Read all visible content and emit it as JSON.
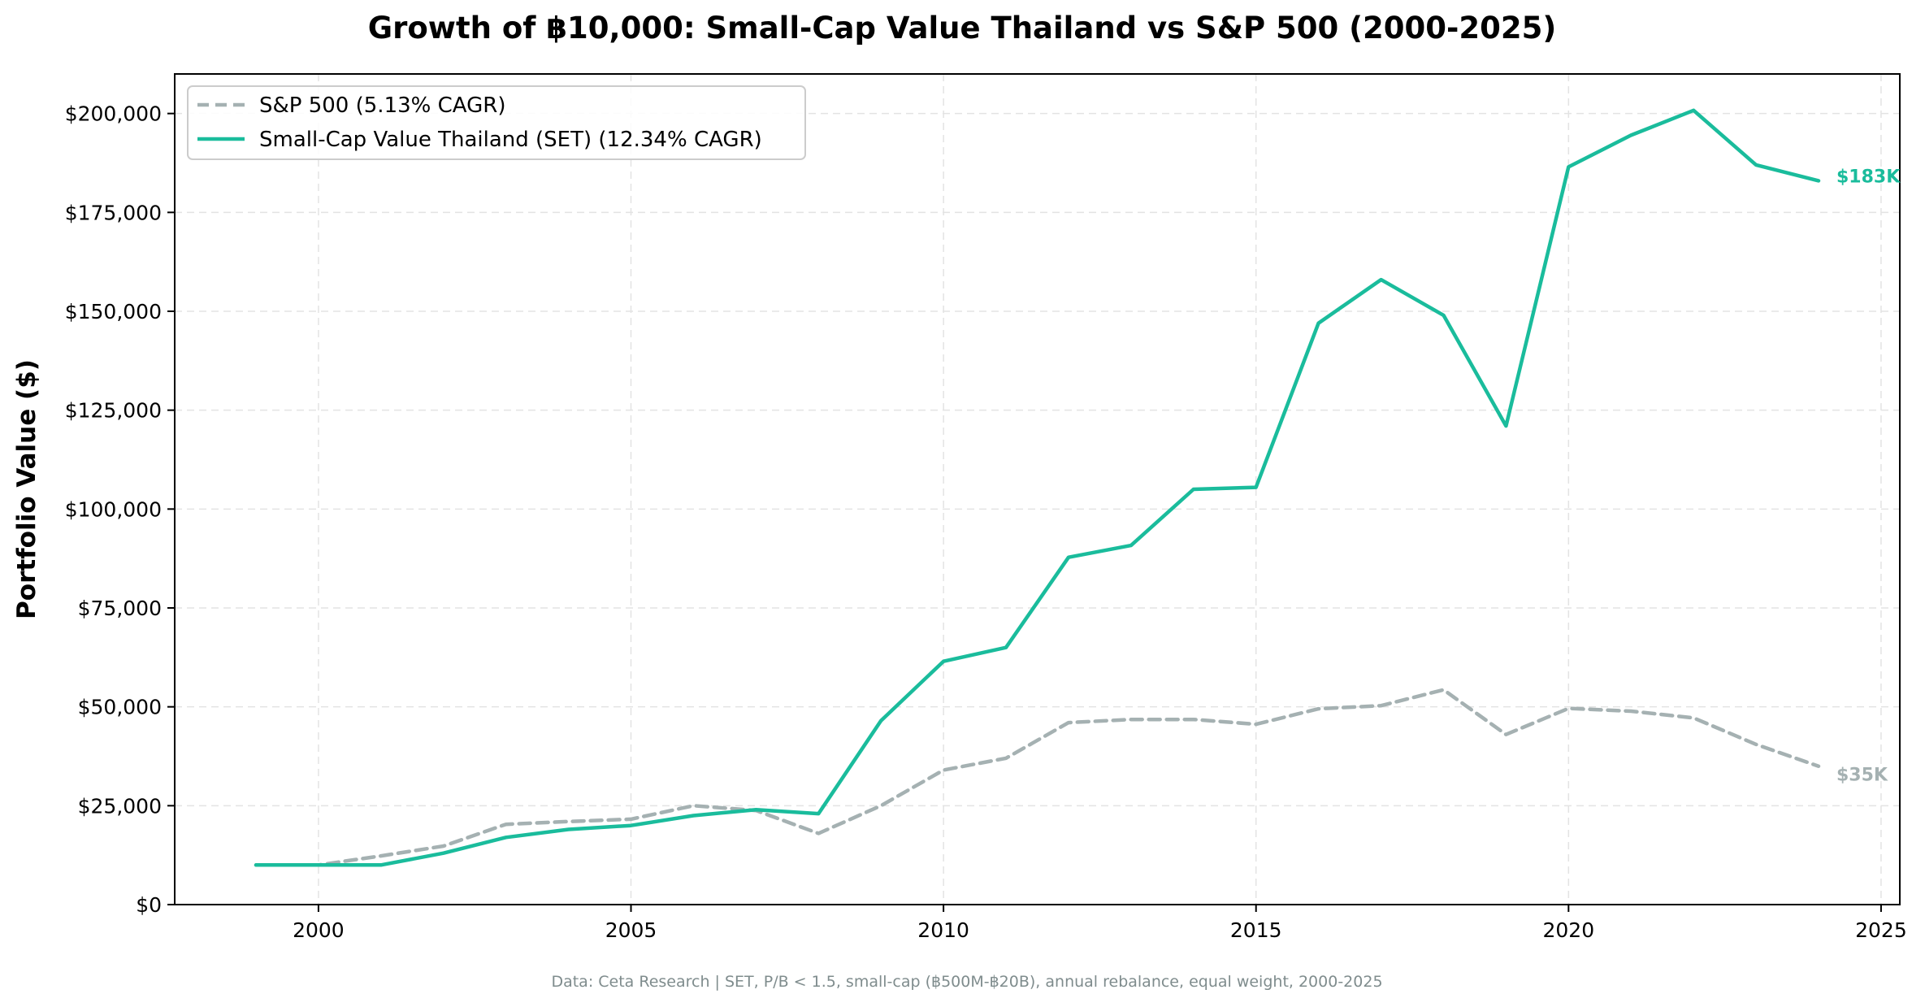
{
  "chart_data": {
    "type": "line",
    "title": "Growth of ฿10,000: Small-Cap Value Thailand vs S&P 500 (2000-2025)",
    "ylabel": "Portfolio Value ($)",
    "xlabel": "",
    "xlim": [
      1997.7,
      2025.3
    ],
    "ylim": [
      0,
      210000
    ],
    "x_ticks": [
      2000,
      2005,
      2010,
      2015,
      2020,
      2025
    ],
    "y_ticks": [
      0,
      25000,
      50000,
      75000,
      100000,
      125000,
      150000,
      175000,
      200000
    ],
    "y_tick_labels": [
      "$0",
      "$25,000",
      "$50,000",
      "$75,000",
      "$100,000",
      "$125,000",
      "$150,000",
      "$175,000",
      "$200,000"
    ],
    "grid": true,
    "legend_position": "top-left",
    "x": [
      1999,
      2000,
      2001,
      2002,
      2003,
      2004,
      2005,
      2006,
      2007,
      2008,
      2009,
      2010,
      2011,
      2012,
      2013,
      2014,
      2015,
      2016,
      2017,
      2018,
      2019,
      2020,
      2021,
      2022,
      2023,
      2024
    ],
    "series": [
      {
        "name": "S&P 500 (5.13% CAGR)",
        "color": "#a5b1b2",
        "style": "dashed",
        "end_label": "$35K",
        "values": [
          10000,
          10000,
          12300,
          14800,
          20300,
          21000,
          21600,
          25000,
          23800,
          18000,
          25000,
          34000,
          37000,
          46000,
          46800,
          46800,
          45600,
          49500,
          50300,
          54300,
          43000,
          49600,
          48900,
          47200,
          40500,
          35000
        ]
      },
      {
        "name": "Small-Cap Value Thailand (SET) (12.34% CAGR)",
        "color": "#1abc9c",
        "style": "solid",
        "end_label": "$183K",
        "values": [
          10000,
          10000,
          10000,
          13000,
          17000,
          19000,
          20000,
          22500,
          24000,
          23000,
          46500,
          61500,
          65000,
          87800,
          90800,
          105000,
          105500,
          147000,
          158000,
          149000,
          121000,
          186500,
          194500,
          200800,
          187000,
          183000
        ]
      }
    ],
    "footer": "Data: Ceta Research | SET, P/B < 1.5, small-cap (฿500M-฿20B), annual rebalance, equal weight, 2000-2025"
  }
}
